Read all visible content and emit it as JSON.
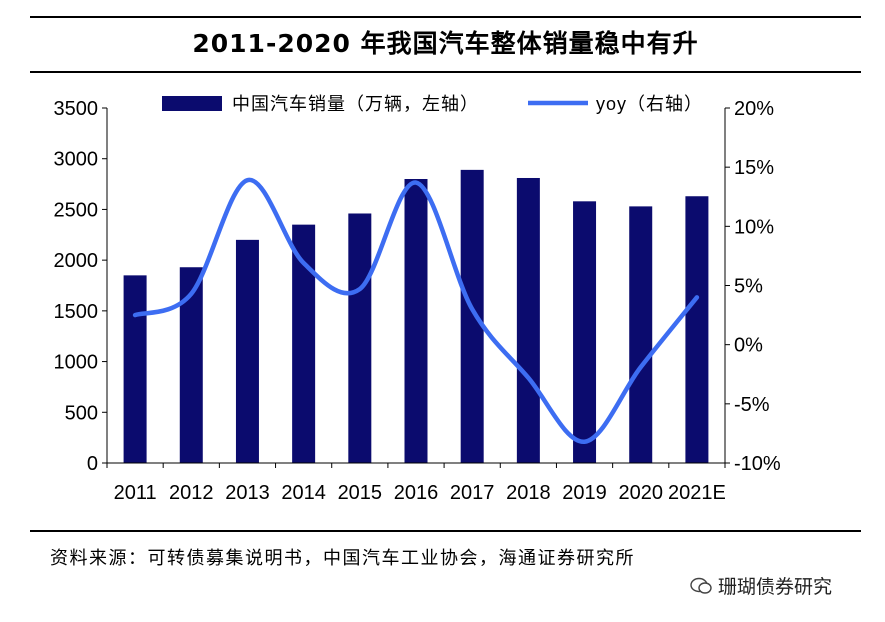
{
  "title": "2011-2020 年我国汽车整体销量稳中有升",
  "source": "资料来源：可转债募集说明书，中国汽车工业协会，海通证券研究所",
  "watermark": "珊瑚债券研究",
  "colors": {
    "bar": "#0b0b6e",
    "line": "#3d6df2",
    "axis": "#000000"
  },
  "chart_data": {
    "type": "bar+line",
    "categories": [
      "2011",
      "2012",
      "2013",
      "2014",
      "2015",
      "2016",
      "2017",
      "2018",
      "2019",
      "2020",
      "2021E"
    ],
    "series": [
      {
        "name": "中国汽车销量（万辆，左轴）",
        "type": "bar",
        "axis": "left",
        "values": [
          1850,
          1930,
          2200,
          2350,
          2460,
          2800,
          2890,
          2810,
          2580,
          2530,
          2630
        ]
      },
      {
        "name": "yoy（右轴）",
        "type": "line",
        "axis": "right",
        "values": [
          2.5,
          4.3,
          13.9,
          6.9,
          4.7,
          13.7,
          3.0,
          -2.8,
          -8.2,
          -1.9,
          4.0
        ]
      }
    ],
    "left_axis": {
      "ylim": [
        0,
        3500
      ],
      "ticks": [
        0,
        500,
        1000,
        1500,
        2000,
        2500,
        3000,
        3500
      ]
    },
    "right_axis": {
      "ylim": [
        -10,
        20
      ],
      "ticks": [
        -10,
        -5,
        0,
        5,
        10,
        15,
        20
      ],
      "tick_labels": [
        "-10%",
        "-5%",
        "0%",
        "5%",
        "10%",
        "15%",
        "20%"
      ]
    },
    "legend_position": "top",
    "grid": false
  }
}
